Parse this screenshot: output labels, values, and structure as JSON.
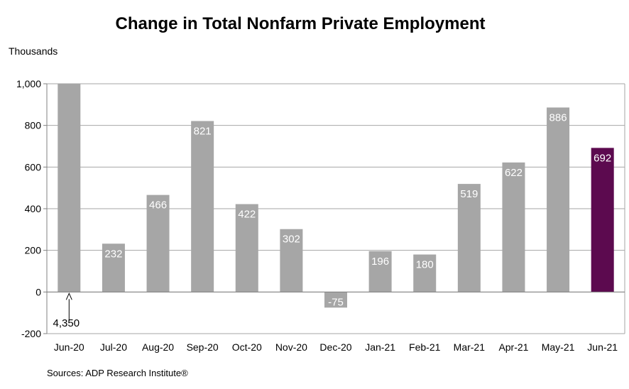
{
  "title": "Change in Total Nonfarm Private Employment",
  "unit_label": "Thousands",
  "source": "Sources: ADP Research Institute®",
  "colors": {
    "bar": "#a6a6a6",
    "highlight": "#5c0a4f",
    "grid": "#a6a6a6",
    "label_text": "#ffffff"
  },
  "chart_data": {
    "type": "bar",
    "categories": [
      "Jun-20",
      "Jul-20",
      "Aug-20",
      "Sep-20",
      "Oct-20",
      "Nov-20",
      "Dec-20",
      "Jan-21",
      "Feb-21",
      "Mar-21",
      "Apr-21",
      "May-21",
      "Jun-21"
    ],
    "values": [
      4350,
      232,
      466,
      821,
      422,
      302,
      -75,
      196,
      180,
      519,
      622,
      886,
      692
    ],
    "data_labels": [
      "4,350",
      "232",
      "466",
      "821",
      "422",
      "302",
      "-75",
      "196",
      "180",
      "519",
      "622",
      "886",
      "692"
    ],
    "highlight_category": "Jun-21",
    "truncated_category": "Jun-20",
    "ylim": [
      -200,
      1000
    ],
    "yticks": [
      -200,
      0,
      200,
      400,
      600,
      800,
      1000
    ],
    "ytick_labels": [
      "-200",
      "0",
      "200",
      "400",
      "600",
      "800",
      "1,000"
    ],
    "grid": true
  }
}
